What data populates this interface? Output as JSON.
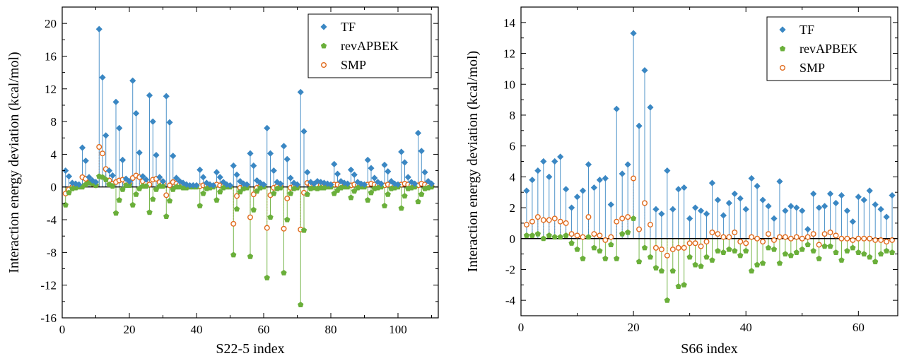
{
  "colors": {
    "tf": "#3a87c3",
    "revapbek": "#6aaf3a",
    "smp": "#e06a1c"
  },
  "chart_data": [
    {
      "type": "scatter",
      "xlabel": "S22-5 index",
      "ylabel": "Interaction energy deviation (kcal/mol)",
      "xlim": [
        0,
        112
      ],
      "ylim": [
        -16,
        22
      ],
      "xticks": [
        0,
        20,
        40,
        60,
        80,
        100
      ],
      "yticks": [
        -16,
        -12,
        -8,
        -4,
        0,
        4,
        8,
        12,
        16,
        20
      ],
      "grid": false,
      "legend_position": "top-right",
      "series": [
        {
          "name": "TF",
          "marker": "diamond",
          "color_key": "tf",
          "x": [
            1,
            2,
            3,
            4,
            5,
            6,
            7,
            8,
            9,
            10,
            11,
            12,
            13,
            14,
            15,
            16,
            17,
            18,
            19,
            20,
            21,
            22,
            23,
            24,
            25,
            26,
            27,
            28,
            29,
            30,
            31,
            32,
            33,
            34,
            35,
            36,
            37,
            38,
            39,
            40,
            41,
            42,
            43,
            44,
            45,
            46,
            47,
            48,
            49,
            50,
            51,
            52,
            53,
            54,
            55,
            56,
            57,
            58,
            59,
            60,
            61,
            62,
            63,
            64,
            65,
            66,
            67,
            68,
            69,
            70,
            71,
            72,
            73,
            74,
            75,
            76,
            77,
            78,
            79,
            80,
            81,
            82,
            83,
            84,
            85,
            86,
            87,
            88,
            89,
            90,
            91,
            92,
            93,
            94,
            95,
            96,
            97,
            98,
            99,
            100,
            101,
            102,
            103,
            104,
            105,
            106,
            107,
            108,
            109,
            110
          ],
          "y": [
            2.0,
            1.3,
            0.5,
            0.4,
            0.3,
            4.8,
            3.2,
            1.2,
            0.8,
            0.6,
            19.3,
            13.4,
            6.3,
            2.0,
            1.4,
            10.4,
            7.2,
            3.3,
            1.0,
            0.7,
            13.0,
            9.0,
            4.2,
            1.3,
            0.9,
            11.2,
            8.0,
            3.9,
            1.2,
            0.7,
            11.1,
            7.9,
            3.8,
            1.1,
            0.7,
            0.5,
            0.3,
            0.2,
            0.2,
            0.2,
            2.1,
            1.2,
            0.5,
            0.3,
            0.2,
            1.8,
            1.2,
            0.6,
            0.3,
            0.2,
            2.6,
            1.5,
            0.7,
            0.4,
            0.3,
            4.1,
            2.6,
            0.8,
            0.5,
            0.3,
            7.2,
            4.1,
            2.0,
            0.6,
            0.4,
            5.0,
            3.4,
            1.1,
            0.5,
            0.3,
            11.6,
            6.8,
            1.8,
            0.6,
            0.4,
            0.7,
            0.6,
            0.5,
            0.4,
            0.3,
            2.8,
            1.6,
            0.7,
            0.5,
            0.4,
            2.1,
            1.5,
            0.6,
            0.4,
            0.3,
            3.3,
            2.3,
            1.1,
            0.6,
            0.4,
            2.7,
            1.9,
            0.7,
            0.4,
            0.3,
            4.3,
            3.0,
            1.2,
            0.6,
            0.4,
            6.6,
            4.4,
            1.8,
            0.7,
            0.4
          ]
        },
        {
          "name": "revAPBEK",
          "marker": "pentagon",
          "color_key": "revapbek",
          "x": [
            1,
            2,
            3,
            4,
            5,
            6,
            7,
            8,
            9,
            10,
            11,
            12,
            13,
            14,
            15,
            16,
            17,
            18,
            19,
            20,
            21,
            22,
            23,
            24,
            25,
            26,
            27,
            28,
            29,
            30,
            31,
            32,
            33,
            34,
            35,
            36,
            37,
            38,
            39,
            40,
            41,
            42,
            43,
            44,
            45,
            46,
            47,
            48,
            49,
            50,
            51,
            52,
            53,
            54,
            55,
            56,
            57,
            58,
            59,
            60,
            61,
            62,
            63,
            64,
            65,
            66,
            67,
            68,
            69,
            70,
            71,
            72,
            73,
            74,
            75,
            76,
            77,
            78,
            79,
            80,
            81,
            82,
            83,
            84,
            85,
            86,
            87,
            88,
            89,
            90,
            91,
            92,
            93,
            94,
            95,
            96,
            97,
            98,
            99,
            100,
            101,
            102,
            103,
            104,
            105,
            106,
            107,
            108,
            109,
            110
          ],
          "y": [
            -2.2,
            -0.7,
            -0.2,
            -0.1,
            0.0,
            0.0,
            0.3,
            0.5,
            0.4,
            0.2,
            1.3,
            1.2,
            0.9,
            0.3,
            0.1,
            -3.2,
            -1.6,
            -0.3,
            0.2,
            0.2,
            -2.2,
            -0.9,
            -0.2,
            0.1,
            0.1,
            -3.1,
            -1.5,
            -0.3,
            0.1,
            0.1,
            -3.6,
            -1.7,
            -0.3,
            0.0,
            0.0,
            -0.1,
            -0.1,
            0.0,
            0.0,
            0.0,
            -2.3,
            -0.8,
            -0.2,
            -0.1,
            0.0,
            -1.6,
            -0.6,
            -0.1,
            0.0,
            0.0,
            -8.3,
            -2.7,
            -0.6,
            -0.2,
            -0.1,
            -8.5,
            -2.8,
            -0.5,
            -0.1,
            0.0,
            -11.1,
            -3.7,
            -0.8,
            -0.2,
            -0.1,
            -10.5,
            -4.0,
            -0.8,
            -0.2,
            -0.1,
            -14.4,
            -5.3,
            -0.9,
            -0.2,
            -0.1,
            -0.2,
            -0.1,
            -0.1,
            0.0,
            0.0,
            -0.8,
            -0.4,
            -0.1,
            0.0,
            0.0,
            -1.3,
            -0.5,
            -0.1,
            0.0,
            0.0,
            -1.6,
            -0.7,
            -0.2,
            -0.1,
            0.0,
            -2.3,
            -0.9,
            -0.2,
            -0.1,
            0.0,
            -2.6,
            -1.1,
            -0.2,
            -0.1,
            0.0,
            -1.8,
            -0.9,
            -0.2,
            -0.1,
            0.0
          ]
        },
        {
          "name": "SMP",
          "marker": "circle-open",
          "color_key": "smp",
          "x": [
            1,
            2,
            3,
            4,
            5,
            6,
            7,
            8,
            9,
            10,
            11,
            12,
            13,
            14,
            15,
            16,
            17,
            18,
            19,
            20,
            21,
            22,
            23,
            24,
            25,
            26,
            27,
            28,
            29,
            30,
            31,
            32,
            33,
            34,
            35,
            36,
            37,
            38,
            39,
            40,
            41,
            42,
            43,
            44,
            45,
            46,
            47,
            48,
            49,
            50,
            51,
            52,
            53,
            54,
            55,
            56,
            57,
            58,
            59,
            60,
            61,
            62,
            63,
            64,
            65,
            66,
            67,
            68,
            69,
            70,
            71,
            72,
            73,
            74,
            75,
            76,
            77,
            78,
            79,
            80,
            81,
            82,
            83,
            84,
            85,
            86,
            87,
            88,
            89,
            90,
            91,
            92,
            93,
            94,
            95,
            96,
            97,
            98,
            99,
            100,
            101,
            102,
            103,
            104,
            105,
            106,
            107,
            108,
            109,
            110
          ],
          "y": [
            -0.8,
            -0.3,
            0.0,
            0.1,
            0.2,
            1.2,
            1.0,
            0.6,
            0.4,
            0.2,
            4.9,
            4.1,
            2.2,
            0.8,
            0.4,
            0.6,
            0.8,
            0.9,
            0.6,
            0.4,
            1.1,
            1.4,
            1.2,
            0.7,
            0.4,
            0.3,
            0.9,
            1.0,
            0.6,
            0.4,
            -1.0,
            0.2,
            0.6,
            0.4,
            0.3,
            0.2,
            0.1,
            0.1,
            0.1,
            0.1,
            0.1,
            0.2,
            0.2,
            0.1,
            0.1,
            0.3,
            0.2,
            0.1,
            0.1,
            0.1,
            -4.5,
            -1.1,
            -0.1,
            0.1,
            0.1,
            -3.7,
            -0.9,
            -0.1,
            0.1,
            0.1,
            -5.0,
            -1.0,
            -0.1,
            0.1,
            0.1,
            -5.1,
            -1.4,
            -0.1,
            0.1,
            0.1,
            -5.2,
            -0.7,
            0.5,
            0.3,
            0.2,
            0.2,
            0.2,
            0.1,
            0.1,
            0.1,
            0.3,
            0.3,
            0.2,
            0.1,
            0.1,
            0.2,
            0.3,
            0.2,
            0.1,
            0.1,
            0.3,
            0.4,
            0.3,
            0.2,
            0.1,
            0.2,
            0.3,
            0.2,
            0.1,
            0.1,
            0.3,
            0.4,
            0.3,
            0.2,
            0.1,
            0.2,
            0.4,
            0.3,
            0.2,
            0.1
          ]
        }
      ]
    },
    {
      "type": "scatter",
      "xlabel": "S66 index",
      "ylabel": "Interaction energy deviation (kcal/mol)",
      "xlim": [
        0,
        67
      ],
      "ylim": [
        -5,
        15
      ],
      "xticks": [
        0,
        20,
        40,
        60
      ],
      "yticks": [
        -4,
        -2,
        0,
        2,
        4,
        6,
        8,
        10,
        12,
        14
      ],
      "grid": false,
      "legend_position": "top-right",
      "series": [
        {
          "name": "TF",
          "marker": "diamond",
          "color_key": "tf",
          "x": [
            1,
            2,
            3,
            4,
            5,
            6,
            7,
            8,
            9,
            10,
            11,
            12,
            13,
            14,
            15,
            16,
            17,
            18,
            19,
            20,
            21,
            22,
            23,
            24,
            25,
            26,
            27,
            28,
            29,
            30,
            31,
            32,
            33,
            34,
            35,
            36,
            37,
            38,
            39,
            40,
            41,
            42,
            43,
            44,
            45,
            46,
            47,
            48,
            49,
            50,
            51,
            52,
            53,
            54,
            55,
            56,
            57,
            58,
            59,
            60,
            61,
            62,
            63,
            64,
            65,
            66
          ],
          "y": [
            3.1,
            3.8,
            4.4,
            5.0,
            4.0,
            5.0,
            5.3,
            3.2,
            2.0,
            2.7,
            3.1,
            4.8,
            3.3,
            3.8,
            3.9,
            2.2,
            8.4,
            4.2,
            4.8,
            13.3,
            7.3,
            10.9,
            8.5,
            1.9,
            1.6,
            4.4,
            1.9,
            3.2,
            3.3,
            1.3,
            2.0,
            1.8,
            1.6,
            3.6,
            2.5,
            1.5,
            2.3,
            2.9,
            2.6,
            1.9,
            3.9,
            3.4,
            2.5,
            2.1,
            1.3,
            3.7,
            1.8,
            2.1,
            2.0,
            1.8,
            0.6,
            2.9,
            2.0,
            2.1,
            2.9,
            2.3,
            2.8,
            1.8,
            1.1,
            2.7,
            2.5,
            3.1,
            2.2,
            1.9,
            1.4,
            2.8
          ]
        },
        {
          "name": "revAPBEK",
          "marker": "pentagon",
          "color_key": "revapbek",
          "x": [
            1,
            2,
            3,
            4,
            5,
            6,
            7,
            8,
            9,
            10,
            11,
            12,
            13,
            14,
            15,
            16,
            17,
            18,
            19,
            20,
            21,
            22,
            23,
            24,
            25,
            26,
            27,
            28,
            29,
            30,
            31,
            32,
            33,
            34,
            35,
            36,
            37,
            38,
            39,
            40,
            41,
            42,
            43,
            44,
            45,
            46,
            47,
            48,
            49,
            50,
            51,
            52,
            53,
            54,
            55,
            56,
            57,
            58,
            59,
            60,
            61,
            62,
            63,
            64,
            65,
            66
          ],
          "y": [
            0.2,
            0.2,
            0.3,
            0.0,
            0.2,
            0.1,
            0.1,
            0.2,
            -0.3,
            -0.7,
            -1.3,
            0.1,
            -0.6,
            -0.8,
            -1.3,
            -0.4,
            -1.3,
            0.3,
            0.4,
            1.3,
            -1.5,
            -0.6,
            -1.2,
            -1.9,
            -2.1,
            -4.0,
            -2.1,
            -3.1,
            -3.0,
            -1.2,
            -1.7,
            -1.8,
            -1.2,
            -1.4,
            -0.8,
            -0.9,
            -0.7,
            -0.8,
            -1.1,
            -0.8,
            -2.1,
            -1.7,
            -1.6,
            -0.6,
            -0.7,
            -1.6,
            -1.0,
            -1.1,
            -0.9,
            -0.7,
            -0.4,
            -0.8,
            -1.3,
            -0.5,
            -0.5,
            -0.9,
            -1.4,
            -0.8,
            -0.6,
            -0.9,
            -1.0,
            -1.2,
            -1.5,
            -1.0,
            -0.8,
            -0.9
          ]
        },
        {
          "name": "SMP",
          "marker": "circle-open",
          "color_key": "smp",
          "x": [
            1,
            2,
            3,
            4,
            5,
            6,
            7,
            8,
            9,
            10,
            11,
            12,
            13,
            14,
            15,
            16,
            17,
            18,
            19,
            20,
            21,
            22,
            23,
            24,
            25,
            26,
            27,
            28,
            29,
            30,
            31,
            32,
            33,
            34,
            35,
            36,
            37,
            38,
            39,
            40,
            41,
            42,
            43,
            44,
            45,
            46,
            47,
            48,
            49,
            50,
            51,
            52,
            53,
            54,
            55,
            56,
            57,
            58,
            59,
            60,
            61,
            62,
            63,
            64,
            65,
            66
          ],
          "y": [
            0.9,
            1.1,
            1.4,
            1.2,
            1.2,
            1.3,
            1.1,
            1.0,
            0.3,
            0.2,
            0.1,
            1.4,
            0.3,
            0.2,
            -0.1,
            0.1,
            1.1,
            1.3,
            1.4,
            3.9,
            0.6,
            2.3,
            0.9,
            -0.6,
            -0.7,
            -1.1,
            -0.7,
            -0.6,
            -0.6,
            -0.3,
            -0.3,
            -0.5,
            -0.2,
            0.4,
            0.3,
            0.1,
            0.1,
            0.4,
            -0.2,
            -0.3,
            0.1,
            0.0,
            -0.2,
            0.3,
            -0.1,
            0.1,
            0.1,
            0.0,
            0.1,
            0.0,
            0.1,
            0.3,
            -0.4,
            0.3,
            0.4,
            0.2,
            0.0,
            0.0,
            -0.1,
            0.0,
            0.0,
            0.0,
            -0.1,
            -0.1,
            -0.2,
            -0.1
          ]
        }
      ]
    }
  ]
}
